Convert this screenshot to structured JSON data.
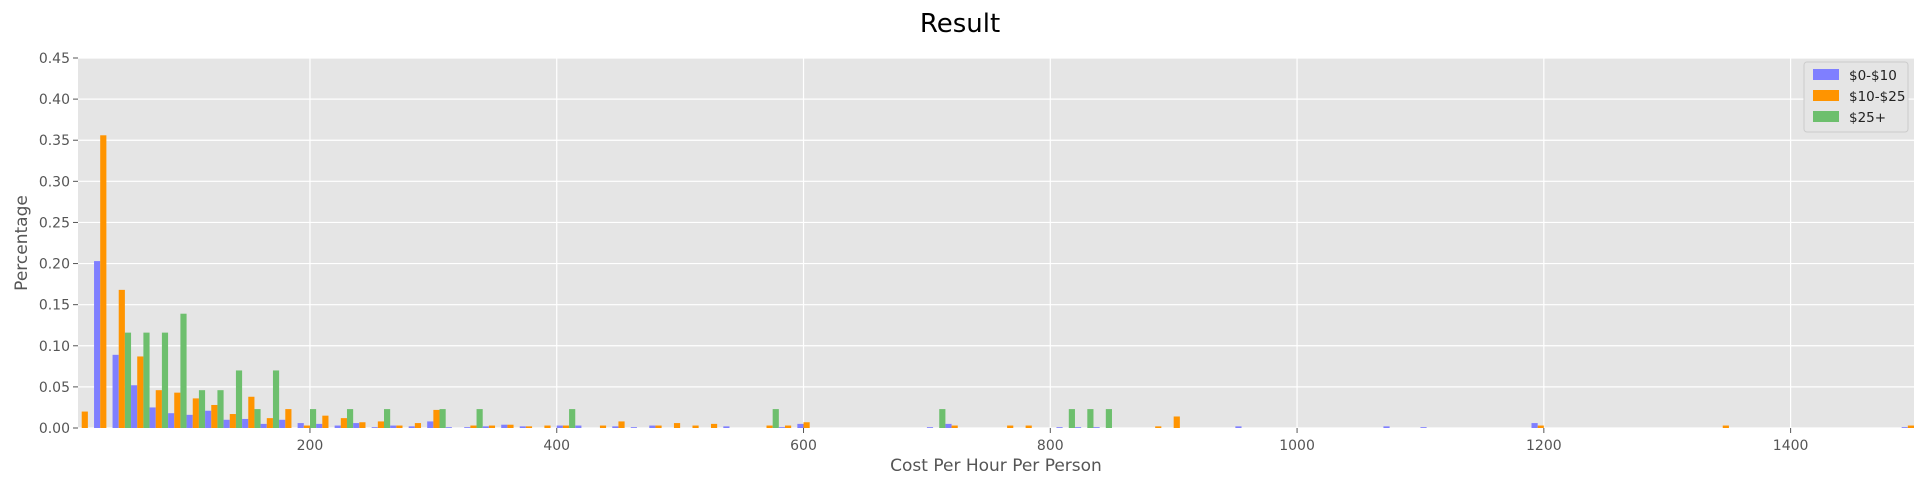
{
  "chart_data": {
    "type": "bar",
    "title": "Result",
    "xlabel": "Cost Per Hour Per Person",
    "ylabel": "Percentage",
    "xlim": [
      12,
      1500
    ],
    "ylim": [
      0,
      0.45
    ],
    "xticks": [
      200,
      400,
      600,
      800,
      1000,
      1200,
      1400
    ],
    "yticks": [
      0.0,
      0.05,
      0.1,
      0.15,
      0.2,
      0.25,
      0.3,
      0.35,
      0.4,
      0.45
    ],
    "grid": true,
    "legend_position": "top-right",
    "bin_width": 15,
    "x": [
      10,
      25,
      40,
      55,
      70,
      85,
      100,
      115,
      130,
      145,
      160,
      175,
      190,
      205,
      220,
      235,
      250,
      265,
      280,
      295,
      310,
      325,
      340,
      355,
      370,
      385,
      400,
      415,
      430,
      445,
      460,
      475,
      490,
      505,
      520,
      535,
      550,
      565,
      580,
      595,
      700,
      715,
      760,
      775,
      805,
      820,
      835,
      880,
      895,
      950,
      1070,
      1100,
      1190,
      1340,
      1490
    ],
    "series": [
      {
        "name": "$0-$10",
        "color": "#7f7fff",
        "values": [
          0,
          0.203,
          0.089,
          0.052,
          0.025,
          0.018,
          0.016,
          0.021,
          0.01,
          0.011,
          0.005,
          0.01,
          0.006,
          0.005,
          0.003,
          0.006,
          0.001,
          0.003,
          0.002,
          0.008,
          0.001,
          0.001,
          0.002,
          0.004,
          0.002,
          0.0,
          0.003,
          0.003,
          0.0,
          0.002,
          0.001,
          0.003,
          0.0,
          0.0,
          0.0,
          0.002,
          0.0,
          0.0,
          0.001,
          0.005,
          0.001,
          0.005,
          0.0,
          0.0,
          0.001,
          0.001,
          0.001,
          0.0,
          0.0,
          0.002,
          0.002,
          0.001,
          0.006,
          0.0,
          0.001
        ]
      },
      {
        "name": "$10-$25",
        "color": "#ff9400",
        "values": [
          0.02,
          0.356,
          0.168,
          0.087,
          0.046,
          0.043,
          0.036,
          0.028,
          0.017,
          0.038,
          0.012,
          0.023,
          0.003,
          0.015,
          0.012,
          0.007,
          0.008,
          0.003,
          0.006,
          0.022,
          0.0,
          0.003,
          0.003,
          0.004,
          0.002,
          0.003,
          0.003,
          0.0,
          0.003,
          0.008,
          0.0,
          0.003,
          0.006,
          0.003,
          0.005,
          0.0,
          0.0,
          0.003,
          0.003,
          0.007,
          0.0,
          0.003,
          0.003,
          0.003,
          0.0,
          0.0,
          0.0,
          0.002,
          0.014,
          0.0,
          0.0,
          0.0,
          0.003,
          0.003,
          0.003
        ]
      },
      {
        "name": "$25+",
        "color": "#6dbf6d",
        "values": [
          0,
          0,
          0.116,
          0.116,
          0.116,
          0.139,
          0.046,
          0.046,
          0.07,
          0.023,
          0.07,
          0,
          0.023,
          0,
          0.023,
          0,
          0.023,
          0,
          0,
          0.023,
          0,
          0.023,
          0,
          0,
          0,
          0,
          0.023,
          0,
          0,
          0,
          0,
          0,
          0,
          0,
          0,
          0,
          0,
          0.023,
          0,
          0,
          0.023,
          0,
          0,
          0,
          0.023,
          0.023,
          0.023,
          0,
          0,
          0,
          0,
          0,
          0,
          0,
          0
        ]
      }
    ]
  }
}
